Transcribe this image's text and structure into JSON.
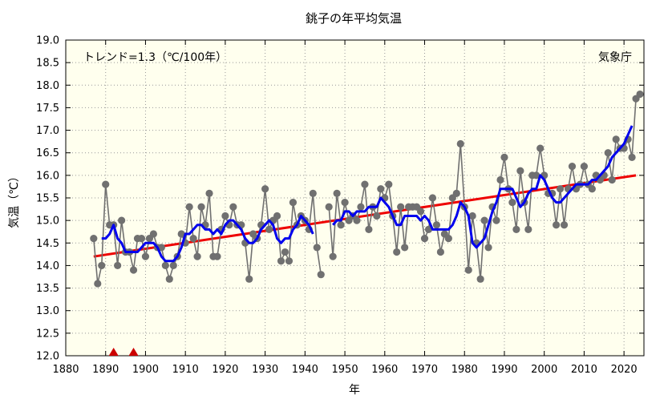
{
  "chart_data": {
    "type": "line",
    "title": "銚子の年平均気温",
    "xlabel": "年",
    "ylabel": "気温（℃）",
    "xlim": [
      1880,
      2025
    ],
    "ylim": [
      12.0,
      19.0
    ],
    "x_ticks": [
      1880,
      1890,
      1900,
      1910,
      1920,
      1930,
      1940,
      1950,
      1960,
      1970,
      1980,
      1990,
      2000,
      2010,
      2020
    ],
    "y_ticks": [
      "12.0",
      "12.5",
      "13.0",
      "13.5",
      "14.0",
      "14.5",
      "15.0",
      "15.5",
      "16.0",
      "16.5",
      "17.0",
      "17.5",
      "18.0",
      "18.5",
      "19.0"
    ],
    "grid": true,
    "trend_text": "トレンド=1.3（℃/100年）",
    "source_text": "気象庁",
    "colors": {
      "background": "#ffffee",
      "annual": "#707070",
      "moving_average": "#0000ee",
      "trend": "#ee0000",
      "marker": "#cc0000",
      "grid": "#999999"
    },
    "series": [
      {
        "kind": "annual",
        "x": [
          1887,
          1888,
          1889,
          1890,
          1891,
          1892,
          1893,
          1894,
          1895,
          1896,
          1897,
          1898,
          1899,
          1900,
          1901,
          1902,
          1903,
          1904,
          1905,
          1906,
          1907,
          1908,
          1909,
          1910,
          1911,
          1912,
          1913,
          1914,
          1915,
          1916,
          1917,
          1918,
          1919,
          1920,
          1921,
          1922,
          1923,
          1924,
          1925,
          1926,
          1927,
          1928,
          1929,
          1930,
          1931,
          1932,
          1933,
          1934,
          1935,
          1936,
          1937,
          1938,
          1939,
          1940,
          1941,
          1942,
          1943,
          1944,
          1945,
          1946,
          1947,
          1948,
          1949,
          1950,
          1951,
          1952,
          1953,
          1954,
          1955,
          1956,
          1957,
          1958,
          1959,
          1960,
          1961,
          1962,
          1963,
          1964,
          1965,
          1966,
          1967,
          1968,
          1969,
          1970,
          1971,
          1972,
          1973,
          1974,
          1975,
          1976,
          1977,
          1978,
          1979,
          1980,
          1981,
          1982,
          1983,
          1984,
          1985,
          1986,
          1987,
          1988,
          1989,
          1990,
          1991,
          1992,
          1993,
          1994,
          1995,
          1996,
          1997,
          1998,
          1999,
          2000,
          2001,
          2002,
          2003,
          2004,
          2005,
          2006,
          2007,
          2008,
          2009,
          2010,
          2011,
          2012,
          2013,
          2014,
          2015,
          2016,
          2017,
          2018,
          2019,
          2020,
          2021,
          2022,
          2023,
          2024
        ],
        "y": [
          14.6,
          13.6,
          14.0,
          15.8,
          14.9,
          14.9,
          14.0,
          15.0,
          14.3,
          14.3,
          13.9,
          14.6,
          14.6,
          14.2,
          14.6,
          14.7,
          14.4,
          14.4,
          14.0,
          13.7,
          14.0,
          14.2,
          14.7,
          14.5,
          15.3,
          14.6,
          14.2,
          15.3,
          14.9,
          15.6,
          14.2,
          14.2,
          14.8,
          15.1,
          14.9,
          15.3,
          14.9,
          14.9,
          14.5,
          13.7,
          14.7,
          14.6,
          14.9,
          15.7,
          14.8,
          15.0,
          15.1,
          14.1,
          14.3,
          14.1,
          15.4,
          14.9,
          15.1,
          15.0,
          14.8,
          15.6,
          14.4,
          13.8,
          null,
          15.3,
          14.2,
          15.6,
          14.9,
          15.4,
          15.0,
          15.1,
          15.0,
          15.3,
          15.8,
          14.8,
          15.3,
          15.1,
          15.7,
          15.5,
          15.8,
          15.1,
          14.3,
          15.3,
          14.4,
          15.3,
          15.3,
          15.3,
          15.2,
          14.6,
          14.8,
          15.5,
          14.9,
          14.3,
          14.7,
          14.6,
          15.5,
          15.6,
          16.7,
          15.3,
          13.9,
          15.1,
          14.5,
          13.7,
          15.0,
          14.4,
          15.3,
          15.0,
          15.9,
          16.4,
          15.7,
          15.4,
          14.8,
          16.1,
          15.4,
          14.8,
          16.0,
          16.0,
          16.6,
          16.0,
          15.6,
          15.6,
          14.9,
          15.7,
          14.9,
          15.7,
          16.2,
          15.7,
          15.8,
          16.2,
          15.8,
          15.7,
          16.0,
          15.9,
          16.0,
          16.5,
          15.9,
          16.8,
          16.6,
          16.6,
          16.8,
          16.4,
          17.7,
          17.8
        ]
      },
      {
        "kind": "moving_average",
        "x": [
          1889,
          1890,
          1891,
          1892,
          1893,
          1894,
          1895,
          1896,
          1897,
          1898,
          1899,
          1900,
          1901,
          1902,
          1903,
          1904,
          1905,
          1906,
          1907,
          1908,
          1909,
          1910,
          1911,
          1912,
          1913,
          1914,
          1915,
          1916,
          1917,
          1918,
          1919,
          1920,
          1921,
          1922,
          1923,
          1924,
          1925,
          1926,
          1927,
          1928,
          1929,
          1930,
          1931,
          1932,
          1933,
          1934,
          1935,
          1936,
          1937,
          1938,
          1939,
          1940,
          1941,
          1942,
          null,
          1947,
          1948,
          1949,
          1950,
          1951,
          1952,
          1953,
          1954,
          1955,
          1956,
          1957,
          1958,
          1959,
          1960,
          1961,
          1962,
          1963,
          1964,
          1965,
          1966,
          1967,
          1968,
          1969,
          1970,
          1971,
          1972,
          1973,
          1974,
          1975,
          1976,
          1977,
          1978,
          1979,
          1980,
          1981,
          1982,
          1983,
          1984,
          1985,
          1986,
          1987,
          1988,
          1989,
          1990,
          1991,
          1992,
          1993,
          1994,
          1995,
          1996,
          1997,
          1998,
          1999,
          2000,
          2001,
          2002,
          2003,
          2004,
          2005,
          2006,
          2007,
          2008,
          2009,
          2010,
          2011,
          2012,
          2013,
          2014,
          2015,
          2016,
          2017,
          2018,
          2019,
          2020,
          2021,
          2022
        ],
        "y": [
          14.6,
          14.6,
          14.7,
          14.9,
          14.6,
          14.5,
          14.3,
          14.3,
          14.3,
          14.3,
          14.4,
          14.5,
          14.5,
          14.5,
          14.4,
          14.2,
          14.1,
          14.1,
          14.1,
          14.2,
          14.4,
          14.7,
          14.7,
          14.8,
          14.9,
          14.9,
          14.8,
          14.8,
          14.7,
          14.8,
          14.7,
          14.9,
          15.0,
          15.0,
          14.9,
          14.8,
          14.6,
          14.5,
          14.5,
          14.6,
          14.8,
          14.9,
          15.0,
          14.9,
          14.6,
          14.5,
          14.6,
          14.6,
          14.8,
          14.9,
          15.1,
          15.0,
          14.9,
          14.7,
          null,
          14.9,
          15.0,
          15.0,
          15.2,
          15.2,
          15.1,
          15.2,
          15.2,
          15.2,
          15.3,
          15.3,
          15.3,
          15.5,
          15.4,
          15.3,
          15.1,
          14.9,
          14.9,
          15.1,
          15.1,
          15.1,
          15.1,
          15.0,
          15.1,
          15.0,
          14.8,
          14.8,
          14.8,
          14.8,
          14.8,
          14.9,
          15.1,
          15.4,
          15.3,
          15.1,
          14.5,
          14.4,
          14.5,
          14.6,
          14.9,
          15.2,
          15.4,
          15.7,
          15.7,
          15.7,
          15.7,
          15.5,
          15.3,
          15.4,
          15.6,
          15.7,
          15.7,
          16.0,
          15.9,
          15.7,
          15.5,
          15.4,
          15.4,
          15.5,
          15.6,
          15.7,
          15.8,
          15.8,
          15.8,
          15.8,
          15.9,
          15.9,
          16.0,
          16.1,
          16.2,
          16.4,
          16.5,
          16.6,
          16.7,
          16.9,
          17.1
        ]
      },
      {
        "kind": "trend",
        "x": [
          1887,
          2023
        ],
        "y": [
          14.2,
          16.0
        ]
      }
    ],
    "markers": [
      {
        "year": 1892
      },
      {
        "year": 1897
      }
    ]
  }
}
